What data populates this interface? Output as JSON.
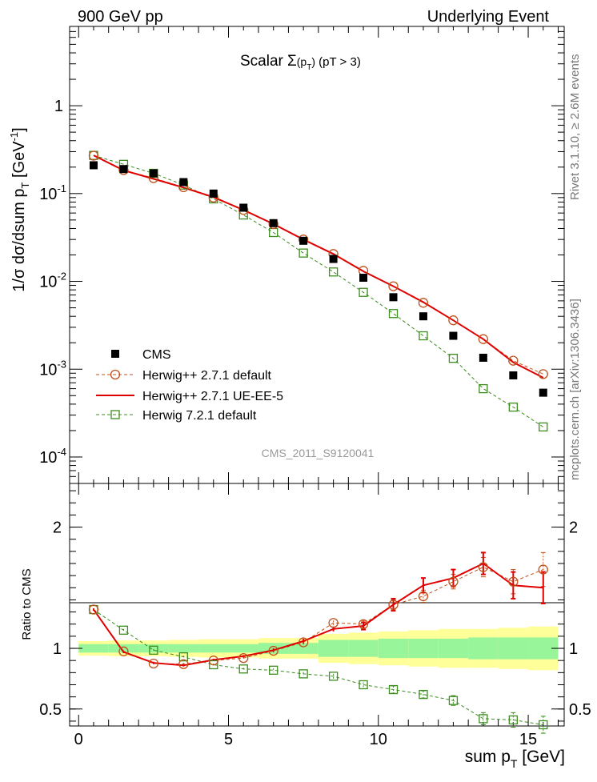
{
  "header": {
    "left": "900 GeV pp",
    "right": "Underlying Event"
  },
  "plot_title": "Scalar",
  "side_labels": {
    "rivet": "Rivet 3.1.10, ≥ 2.6M events",
    "mcplots": "mcplots.cern.ch [arXiv:1306.3436]"
  },
  "watermark": "CMS_2011_S9120041",
  "colors": {
    "cms": "#000000",
    "herwig_default": "#c0501a",
    "ueee5": "#e00000",
    "herwig7": "#3c8c1e",
    "band_inner": "#99f599",
    "band_outer": "#ffff99"
  },
  "chart_data": [
    {
      "type": "scatter",
      "panel": "main",
      "ylabel": "1/σ dσ/dsum p T [GeV⁻¹]",
      "yscale": "log",
      "ylim": [
        5e-05,
        8
      ],
      "xlim": [
        -0.3,
        16.2
      ],
      "y_ticklabels": [
        "1",
        "10⁻¹",
        "10⁻²",
        "10⁻³",
        "10⁻⁴"
      ],
      "x": [
        0.5,
        1.5,
        2.5,
        3.5,
        4.5,
        5.5,
        6.5,
        7.5,
        8.5,
        9.5,
        10.5,
        11.5,
        12.5,
        13.5,
        14.5,
        15.5
      ],
      "legend_position": "lower-left",
      "series": [
        {
          "name": "CMS",
          "style": "square-marker",
          "values": [
            0.21,
            0.19,
            0.17,
            0.135,
            0.1,
            0.069,
            0.046,
            0.029,
            0.018,
            0.011,
            0.0066,
            0.004,
            0.0024,
            0.00135,
            0.00085,
            0.00054
          ]
        },
        {
          "name": "Herwig++ 2.7.1 default",
          "style": "dashed-circle",
          "values": [
            0.27,
            0.185,
            0.15,
            0.118,
            0.09,
            0.065,
            0.045,
            0.03,
            0.0205,
            0.0132,
            0.0088,
            0.0057,
            0.0036,
            0.0022,
            0.00125,
            0.00088
          ]
        },
        {
          "name": "Herwig++ 2.7.1 UE-EE-5",
          "style": "solid-line",
          "values": [
            0.272,
            0.184,
            0.147,
            0.117,
            0.091,
            0.065,
            0.045,
            0.03,
            0.0205,
            0.013,
            0.0088,
            0.0058,
            0.0036,
            0.0022,
            0.0012,
            0.0008
          ]
        },
        {
          "name": "Herwig 7.2.1 default",
          "style": "dashed-square",
          "values": [
            0.272,
            0.215,
            0.17,
            0.125,
            0.087,
            0.057,
            0.036,
            0.021,
            0.0128,
            0.0075,
            0.0043,
            0.0024,
            0.00133,
            0.0006,
            0.00037,
            0.00022
          ]
        }
      ]
    },
    {
      "type": "line",
      "panel": "ratio",
      "ylabel": "Ratio to CMS",
      "xlabel": "sum p T [GeV]",
      "ylim": [
        0.36,
        2.36
      ],
      "xlim": [
        -0.3,
        16.2
      ],
      "y_ticklabels": [
        "2",
        "1",
        "0.5"
      ],
      "x_ticklabels": [
        "0",
        "5",
        "10",
        "15"
      ],
      "x": [
        0.5,
        1.5,
        2.5,
        3.5,
        4.5,
        5.5,
        6.5,
        7.5,
        8.5,
        9.5,
        10.5,
        11.5,
        12.5,
        13.5,
        14.5,
        15.5
      ],
      "band_bins": [
        [
          0,
          1
        ],
        [
          1,
          2
        ],
        [
          2,
          3
        ],
        [
          3,
          4
        ],
        [
          4,
          5
        ],
        [
          5,
          6
        ],
        [
          6,
          7
        ],
        [
          7,
          8
        ],
        [
          8,
          9
        ],
        [
          9,
          10
        ],
        [
          10,
          11
        ],
        [
          11,
          12
        ],
        [
          12,
          13
        ],
        [
          13,
          14
        ],
        [
          14,
          15
        ],
        [
          15,
          16
        ]
      ],
      "band_inner": [
        0.035,
        0.035,
        0.035,
        0.035,
        0.035,
        0.035,
        0.045,
        0.045,
        0.07,
        0.07,
        0.08,
        0.08,
        0.08,
        0.09,
        0.09,
        0.09
      ],
      "band_outer": [
        0.06,
        0.065,
        0.065,
        0.07,
        0.075,
        0.075,
        0.085,
        0.085,
        0.12,
        0.13,
        0.14,
        0.15,
        0.16,
        0.16,
        0.17,
        0.18
      ],
      "series": [
        {
          "name": "Herwig++ 2.7.1 default",
          "values": [
            1.32,
            0.975,
            0.875,
            0.87,
            0.9,
            0.92,
            0.98,
            1.05,
            1.21,
            1.2,
            1.36,
            1.43,
            1.55,
            1.67,
            1.55,
            1.65
          ],
          "errors": [
            0.01,
            0.01,
            0.01,
            0.01,
            0.01,
            0.01,
            0.015,
            0.02,
            0.02,
            0.03,
            0.04,
            0.05,
            0.06,
            0.08,
            0.1,
            0.14
          ]
        },
        {
          "name": "Herwig++ 2.7.1 UE-EE-5",
          "values": [
            1.32,
            0.97,
            0.88,
            0.86,
            0.905,
            0.935,
            0.985,
            1.06,
            1.16,
            1.185,
            1.36,
            1.52,
            1.58,
            1.7,
            1.52,
            1.5
          ],
          "errors": [
            0.01,
            0.01,
            0.01,
            0.01,
            0.01,
            0.01,
            0.015,
            0.02,
            0.02,
            0.03,
            0.05,
            0.06,
            0.07,
            0.09,
            0.11,
            0.13
          ]
        },
        {
          "name": "Herwig 7.2.1 default",
          "values": [
            1.32,
            1.15,
            0.985,
            0.93,
            0.865,
            0.83,
            0.82,
            0.79,
            0.77,
            0.7,
            0.66,
            0.62,
            0.57,
            0.42,
            0.41,
            0.37
          ],
          "errors": [
            0.01,
            0.01,
            0.01,
            0.01,
            0.01,
            0.01,
            0.015,
            0.015,
            0.02,
            0.02,
            0.03,
            0.03,
            0.04,
            0.05,
            0.06,
            0.07
          ]
        }
      ]
    }
  ]
}
